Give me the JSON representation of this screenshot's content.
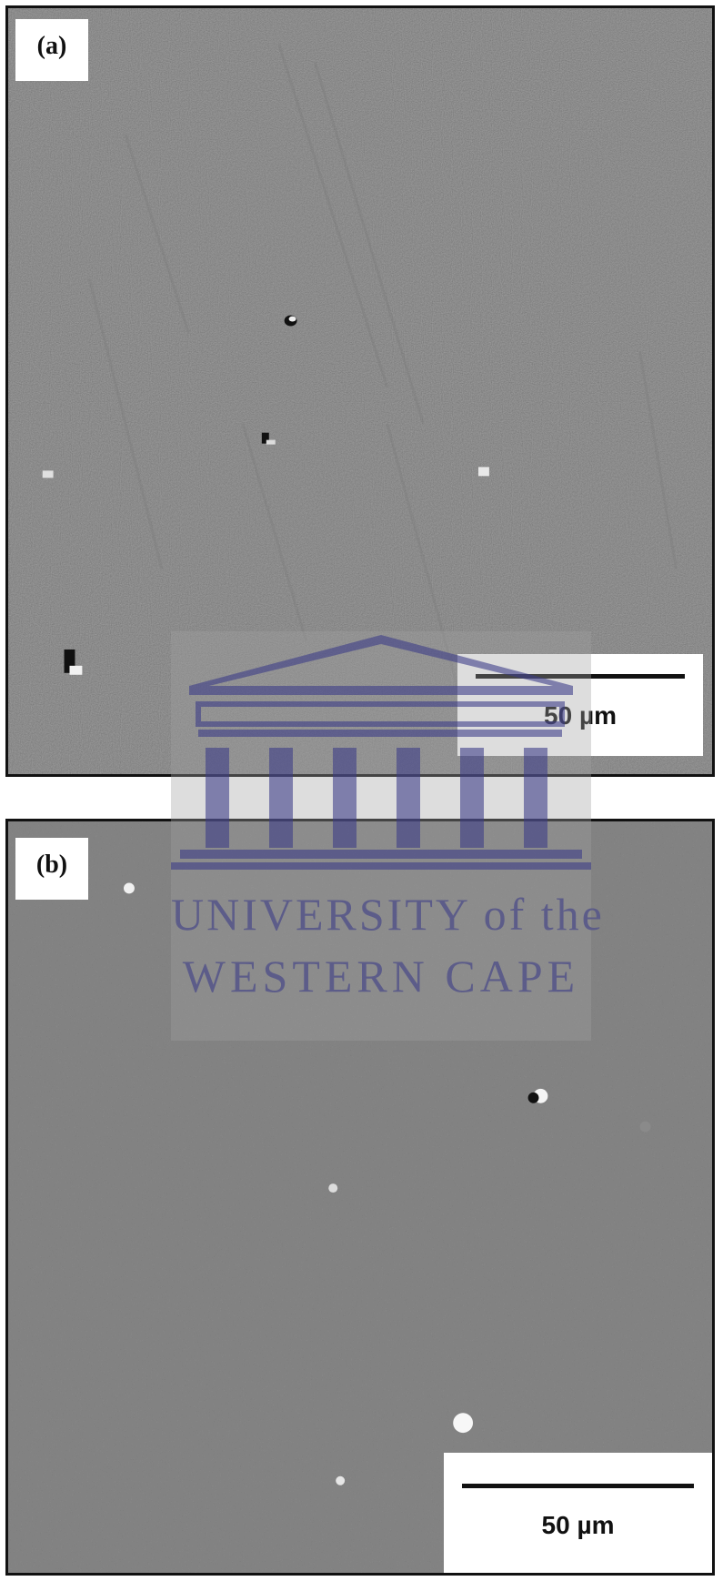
{
  "panels": [
    {
      "label": "(a)",
      "scale_text": "50 µm"
    },
    {
      "label": "(b)",
      "scale_text": "50 µm"
    }
  ],
  "watermark": {
    "line1": "UNIVERSITY of the",
    "line2": "WESTERN CAPE",
    "color": "#4a4a8c"
  },
  "colors": {
    "panel_a_bg": "#5f5f5f",
    "panel_b_bg": "#4e4e4e"
  }
}
